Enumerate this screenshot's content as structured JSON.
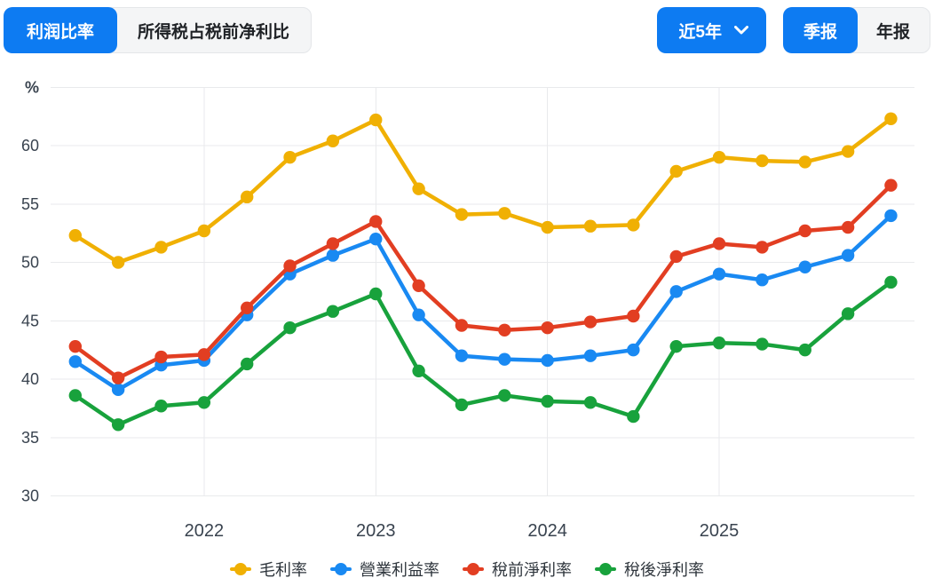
{
  "header": {
    "tabs": [
      {
        "label": "利润比率",
        "active": true
      },
      {
        "label": "所得税占税前净利比",
        "active": false
      }
    ],
    "range_selector": {
      "label": "近5年",
      "icon": "chevron-down-icon"
    },
    "period_toggle": [
      {
        "label": "季报",
        "active": true
      },
      {
        "label": "年报",
        "active": false
      }
    ]
  },
  "colors": {
    "accent_blue": "#0D7BF2",
    "inactive_bg": "#F4F5F6",
    "inactive_border": "#E4E6E9",
    "grid_line": "#E9EAEC",
    "axis_text": "#39434F",
    "legend_text": "#2E353C"
  },
  "chart_data": {
    "type": "line",
    "unit_label": "%",
    "y_ticks": [
      30,
      35,
      40,
      45,
      50,
      55,
      60
    ],
    "ylim": [
      30,
      65
    ],
    "grid": true,
    "legend_position": "bottom",
    "x_year_labels": [
      "2022",
      "2023",
      "2024",
      "2025"
    ],
    "year_label_indices": [
      3,
      7,
      11,
      15
    ],
    "x_description": "20 quarterly points, Q1 2021 - Q4 2025",
    "series": [
      {
        "id": "gross-margin",
        "name": "毛利率",
        "color": "#F0B003",
        "values": [
          52.3,
          50.0,
          51.3,
          52.7,
          55.6,
          59.0,
          60.4,
          62.2,
          56.3,
          54.1,
          54.2,
          53.0,
          53.1,
          53.2,
          57.8,
          59.0,
          58.7,
          58.6,
          59.5,
          62.3
        ]
      },
      {
        "id": "operating-margin",
        "name": "營業利益率",
        "color": "#1989F2",
        "values": [
          41.5,
          39.1,
          41.2,
          41.6,
          45.5,
          49.0,
          50.6,
          52.0,
          45.5,
          42.0,
          41.7,
          41.6,
          42.0,
          42.5,
          47.5,
          49.0,
          48.5,
          49.6,
          50.6,
          54.0
        ]
      },
      {
        "id": "pretax-net-margin",
        "name": "稅前淨利率",
        "color": "#E23E22",
        "values": [
          42.8,
          40.1,
          41.9,
          42.1,
          46.1,
          49.7,
          51.6,
          53.5,
          48.0,
          44.6,
          44.2,
          44.4,
          44.9,
          45.4,
          50.5,
          51.6,
          51.3,
          52.7,
          53.0,
          56.6
        ]
      },
      {
        "id": "after-tax-net-margin",
        "name": "稅後淨利率",
        "color": "#18A23C",
        "values": [
          38.6,
          36.1,
          37.7,
          38.0,
          41.3,
          44.4,
          45.8,
          47.3,
          40.7,
          37.8,
          38.6,
          38.1,
          38.0,
          36.8,
          42.8,
          43.1,
          43.0,
          42.5,
          45.6,
          48.3
        ]
      }
    ]
  }
}
